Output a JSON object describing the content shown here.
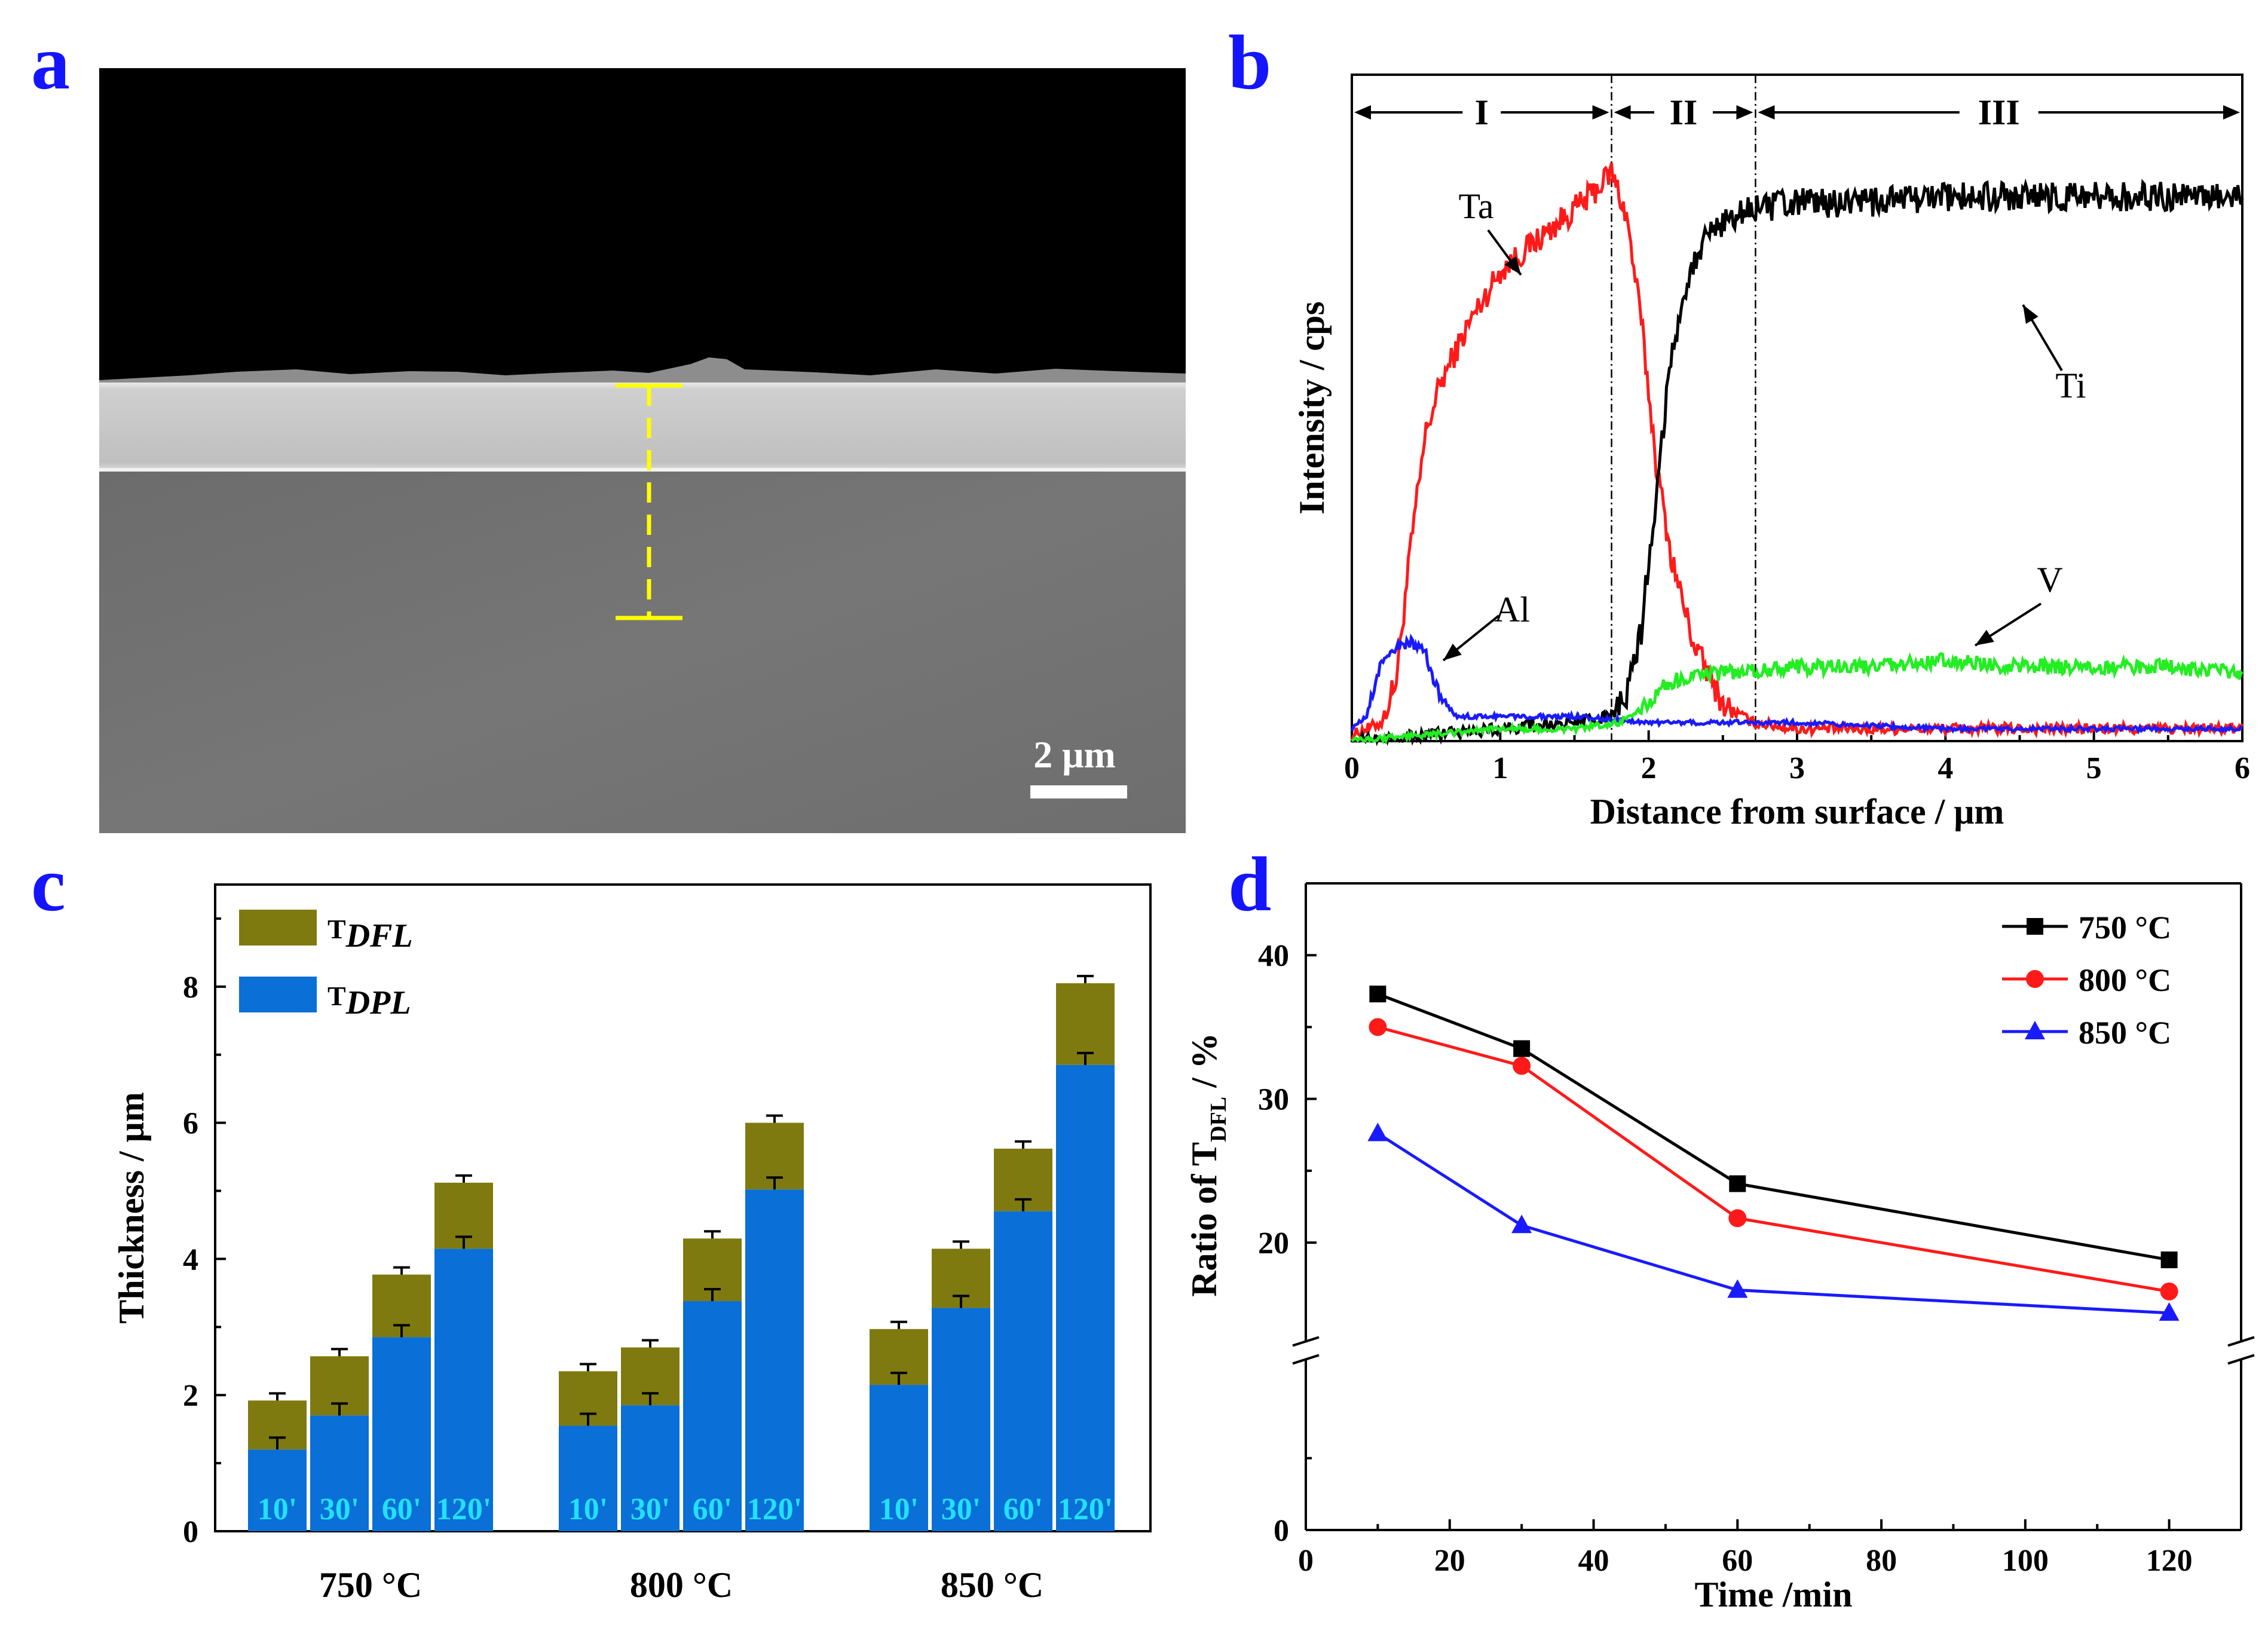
{
  "panels": {
    "a": {
      "letter": "a",
      "scale_bar": "2 μm"
    },
    "b": {
      "letter": "b"
    },
    "c": {
      "letter": "c"
    },
    "d": {
      "letter": "d"
    }
  },
  "colors": {
    "panel_letter": "#1414ff",
    "ta": "#ff1a1a",
    "ti": "#000000",
    "al": "#1a1aff",
    "v": "#22ee22",
    "dfl": "#7f7a10",
    "dpl": "#0a6fd6",
    "time_label": "#22e0ff"
  },
  "chart_data": [
    {
      "panel": "b",
      "type": "line",
      "xlabel": "Distance from surface / μm",
      "ylabel": "Intensity / cps",
      "xlim": [
        0,
        6
      ],
      "ylim": [
        0,
        100
      ],
      "xticks": [
        "0",
        "1",
        "2",
        "3",
        "4",
        "5",
        "6"
      ],
      "regions": [
        {
          "name": "I",
          "from": 0,
          "to": 1.75
        },
        {
          "name": "II",
          "from": 1.75,
          "to": 2.72
        },
        {
          "name": "III",
          "from": 2.72,
          "to": 6
        }
      ],
      "series": [
        {
          "name": "Ta",
          "x": [
            0,
            0.2,
            0.3,
            0.4,
            0.5,
            0.6,
            0.8,
            1.0,
            1.2,
            1.4,
            1.6,
            1.75,
            1.85,
            1.95,
            2.05,
            2.15,
            2.3,
            2.5,
            2.7,
            3.0,
            4.0,
            5.0,
            6.0
          ],
          "values": [
            1,
            3,
            10,
            32,
            50,
            58,
            68,
            76,
            80,
            84,
            88,
            92,
            85,
            68,
            45,
            30,
            16,
            6,
            3,
            2,
            2,
            2,
            2
          ]
        },
        {
          "name": "Ti",
          "x": [
            0,
            1.0,
            1.5,
            1.75,
            1.85,
            1.95,
            2.05,
            2.15,
            2.25,
            2.35,
            2.5,
            2.7,
            3.0,
            3.5,
            4.0,
            4.5,
            5.0,
            5.5,
            6.0
          ],
          "values": [
            0,
            2,
            3,
            4,
            7,
            18,
            40,
            62,
            74,
            80,
            84,
            86,
            87,
            87,
            88,
            88,
            88,
            88,
            88
          ]
        },
        {
          "name": "Al",
          "x": [
            0,
            0.1,
            0.2,
            0.3,
            0.4,
            0.5,
            0.55,
            0.6,
            0.7,
            1.0,
            1.5,
            2.0,
            2.5,
            3.0,
            4.0,
            5.0,
            6.0
          ],
          "values": [
            2,
            4,
            13,
            15,
            16,
            14,
            10,
            7,
            4,
            4,
            4,
            3,
            3,
            3,
            2,
            2,
            2
          ]
        },
        {
          "name": "V",
          "x": [
            0,
            0.5,
            1.0,
            1.5,
            1.8,
            2.0,
            2.1,
            2.2,
            2.5,
            3.0,
            3.5,
            4.0,
            4.5,
            5.0,
            5.5,
            6.0
          ],
          "values": [
            0,
            1,
            2,
            2,
            3,
            6,
            9,
            10,
            11,
            12,
            12,
            13,
            12,
            12,
            12,
            11
          ]
        }
      ],
      "annotations": [
        "Ta",
        "Ti",
        "Al",
        "V",
        "I",
        "II",
        "III"
      ]
    },
    {
      "panel": "c",
      "type": "bar",
      "stacked": true,
      "ylabel": "Thickness / μm",
      "ylim": [
        0,
        9.5
      ],
      "yticks": [
        "0",
        "2",
        "4",
        "6",
        "8"
      ],
      "legend": [
        "T_DFL",
        "T_DPL"
      ],
      "legend_labels": [
        {
          "main": "T",
          "sub": "DFL"
        },
        {
          "main": "T",
          "sub": "DPL"
        }
      ],
      "groups": [
        "750 °C",
        "800 °C",
        "850 °C"
      ],
      "bar_labels": [
        "10'",
        "30'",
        "60'",
        "120'"
      ],
      "series": [
        {
          "name": "T_DPL",
          "values": [
            [
              1.2,
              1.7,
              2.85,
              4.15
            ],
            [
              1.55,
              1.85,
              3.38,
              5.02
            ],
            [
              2.15,
              3.28,
              4.7,
              6.85
            ]
          ]
        },
        {
          "name": "T_DFL_total",
          "values": [
            [
              1.92,
              2.57,
              3.77,
              5.12
            ],
            [
              2.35,
              2.7,
              4.3,
              6.0
            ],
            [
              2.97,
              4.15,
              5.62,
              8.05
            ]
          ]
        }
      ]
    },
    {
      "panel": "d",
      "type": "line",
      "xlabel": "Time /min",
      "ylabel": "Ratio of  T",
      "ylabel_sub": "DFL",
      "ylabel_suffix": "  / %",
      "xlim": [
        0,
        130
      ],
      "ylim": [
        0,
        45
      ],
      "xticks": [
        "0",
        "20",
        "40",
        "60",
        "80",
        "100",
        "120"
      ],
      "yticks": [
        "0",
        "20",
        "30",
        "40"
      ],
      "axis_break": [
        10,
        15
      ],
      "x": [
        10,
        30,
        60,
        120
      ],
      "series": [
        {
          "name": "750 °C",
          "values": [
            37.3,
            33.5,
            24.1,
            18.8
          ]
        },
        {
          "name": "800 °C",
          "values": [
            35.0,
            32.3,
            21.7,
            16.6
          ]
        },
        {
          "name": "850 °C",
          "values": [
            27.6,
            21.2,
            16.7,
            15.1
          ]
        }
      ]
    }
  ]
}
